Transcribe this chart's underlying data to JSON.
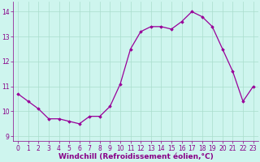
{
  "x": [
    0,
    1,
    2,
    3,
    4,
    5,
    6,
    7,
    8,
    9,
    10,
    11,
    12,
    13,
    14,
    15,
    16,
    17,
    18,
    19,
    20,
    21,
    22,
    23
  ],
  "y": [
    10.7,
    10.4,
    10.1,
    9.7,
    9.7,
    9.6,
    9.5,
    9.8,
    9.8,
    10.2,
    11.1,
    12.5,
    13.2,
    13.4,
    13.4,
    13.3,
    13.6,
    14.0,
    13.8,
    13.4,
    12.5,
    11.6,
    10.4,
    11.0
  ],
  "line_color": "#990099",
  "marker": "D",
  "markersize": 1.8,
  "linewidth": 0.9,
  "xlabel": "Windchill (Refroidissement éolien,°C)",
  "xlabel_fontsize": 6.5,
  "xlim": [
    -0.5,
    23.5
  ],
  "ylim": [
    8.8,
    14.4
  ],
  "yticks": [
    9,
    10,
    11,
    12,
    13,
    14
  ],
  "xticks": [
    0,
    1,
    2,
    3,
    4,
    5,
    6,
    7,
    8,
    9,
    10,
    11,
    12,
    13,
    14,
    15,
    16,
    17,
    18,
    19,
    20,
    21,
    22,
    23
  ],
  "background_color": "#cef5ee",
  "grid_color": "#aaddcc",
  "tick_fontsize": 5.5,
  "label_color": "#880088"
}
